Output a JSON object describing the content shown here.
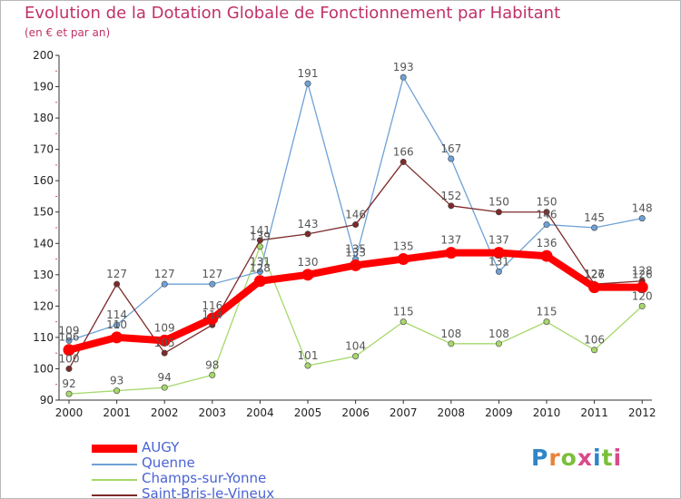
{
  "title": "Evolution de la Dotation Globale de Fonctionnement par Habitant",
  "subtitle": "(en € et par an)",
  "brand": "Proxiti",
  "chart_data": {
    "type": "line",
    "title": "Evolution de la Dotation Globale de Fonctionnement par Habitant",
    "subtitle": "(en € et par an)",
    "xlabel": "",
    "ylabel": "",
    "ylim": [
      90,
      200
    ],
    "yticks": [
      90,
      100,
      110,
      120,
      130,
      140,
      150,
      160,
      170,
      180,
      190,
      200
    ],
    "grid": false,
    "legend_position": "bottom-left",
    "x": [
      "2000",
      "2001",
      "2002",
      "2003",
      "2004",
      "2005",
      "2006",
      "2007",
      "2008",
      "2009",
      "2010",
      "2011",
      "2012"
    ],
    "series": [
      {
        "name": "AUGY",
        "color": "#ff0000",
        "values": [
          106,
          110,
          109,
          116,
          128,
          130,
          133,
          135,
          137,
          137,
          136,
          126,
          126
        ]
      },
      {
        "name": "Quenne",
        "color": "#6fa1d6",
        "values": [
          109,
          114,
          127,
          127,
          131,
          191,
          135,
          193,
          167,
          131,
          146,
          145,
          148
        ]
      },
      {
        "name": "Champs-sur-Yonne",
        "color": "#a6d86b",
        "values": [
          92,
          93,
          94,
          98,
          139,
          101,
          104,
          115,
          108,
          108,
          115,
          106,
          120
        ]
      },
      {
        "name": "Saint-Bris-le-Vineux",
        "color": "#7d2a2a",
        "values": [
          100,
          127,
          105,
          114,
          141,
          143,
          146,
          166,
          152,
          150,
          150,
          127,
          128
        ]
      }
    ]
  }
}
